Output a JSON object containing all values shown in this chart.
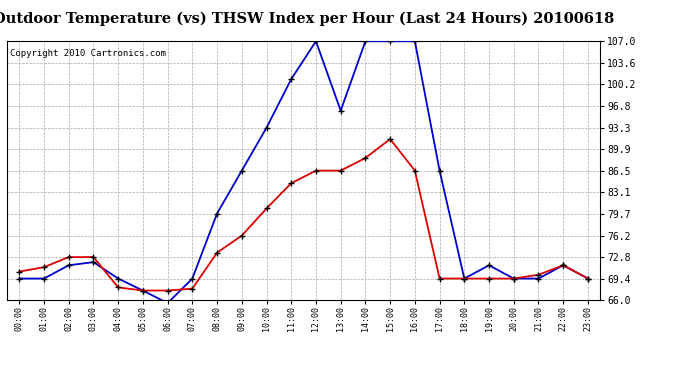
{
  "title": "Outdoor Temperature (vs) THSW Index per Hour (Last 24 Hours) 20100618",
  "copyright": "Copyright 2010 Cartronics.com",
  "hours": [
    "00:00",
    "01:00",
    "02:00",
    "03:00",
    "04:00",
    "05:00",
    "06:00",
    "07:00",
    "08:00",
    "09:00",
    "10:00",
    "11:00",
    "12:00",
    "13:00",
    "14:00",
    "15:00",
    "16:00",
    "17:00",
    "18:00",
    "19:00",
    "20:00",
    "21:00",
    "22:00",
    "23:00"
  ],
  "temp_red": [
    70.5,
    71.2,
    72.8,
    72.8,
    68.0,
    67.5,
    67.5,
    67.8,
    73.5,
    76.2,
    80.5,
    84.5,
    86.5,
    86.5,
    88.5,
    91.5,
    86.5,
    69.4,
    69.4,
    69.4,
    69.4,
    70.0,
    71.5,
    69.4
  ],
  "thsw_blue": [
    69.4,
    69.4,
    71.5,
    72.0,
    69.4,
    67.5,
    65.5,
    69.4,
    79.7,
    86.5,
    93.3,
    101.0,
    107.0,
    96.0,
    107.0,
    107.0,
    107.0,
    86.5,
    69.4,
    71.5,
    69.4,
    69.4,
    71.5,
    69.4
  ],
  "ylim_min": 66.0,
  "ylim_max": 107.0,
  "yticks": [
    66.0,
    69.4,
    72.8,
    76.2,
    79.7,
    83.1,
    86.5,
    89.9,
    93.3,
    96.8,
    100.2,
    103.6,
    107.0
  ],
  "ytick_labels": [
    "66.0",
    "69.4",
    "72.8",
    "76.2",
    "79.7",
    "83.1",
    "86.5",
    "89.9",
    "93.3",
    "96.8",
    "100.2",
    "103.6",
    "107.0"
  ],
  "bg_color": "#ffffff",
  "grid_color": "#aaaaaa",
  "line_red_color": "#dd0000",
  "line_blue_color": "#0000cc",
  "marker_color": "#000000",
  "title_fontsize": 10.5,
  "copyright_fontsize": 6.5
}
